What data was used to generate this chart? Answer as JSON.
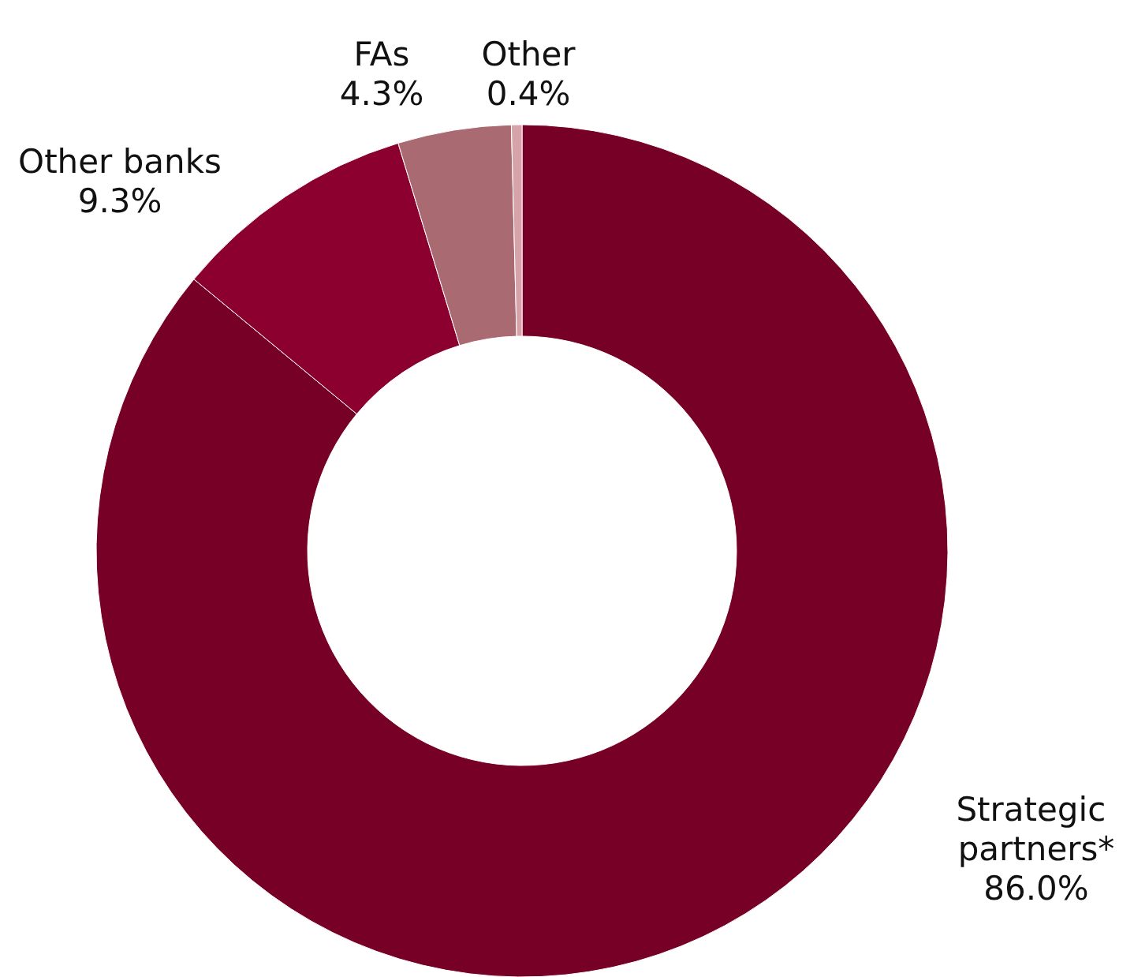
{
  "chart_data": {
    "type": "donut",
    "categories": [
      "Strategic partners*",
      "Other banks",
      "FAs",
      "Other"
    ],
    "values": [
      86.0,
      9.3,
      4.3,
      0.4
    ],
    "colors": [
      "#770027",
      "#8c0030",
      "#a96a72",
      "#d6a3aa"
    ],
    "value_labels": [
      "86.0%",
      "9.3%",
      "4.3%",
      "0.4%"
    ]
  }
}
